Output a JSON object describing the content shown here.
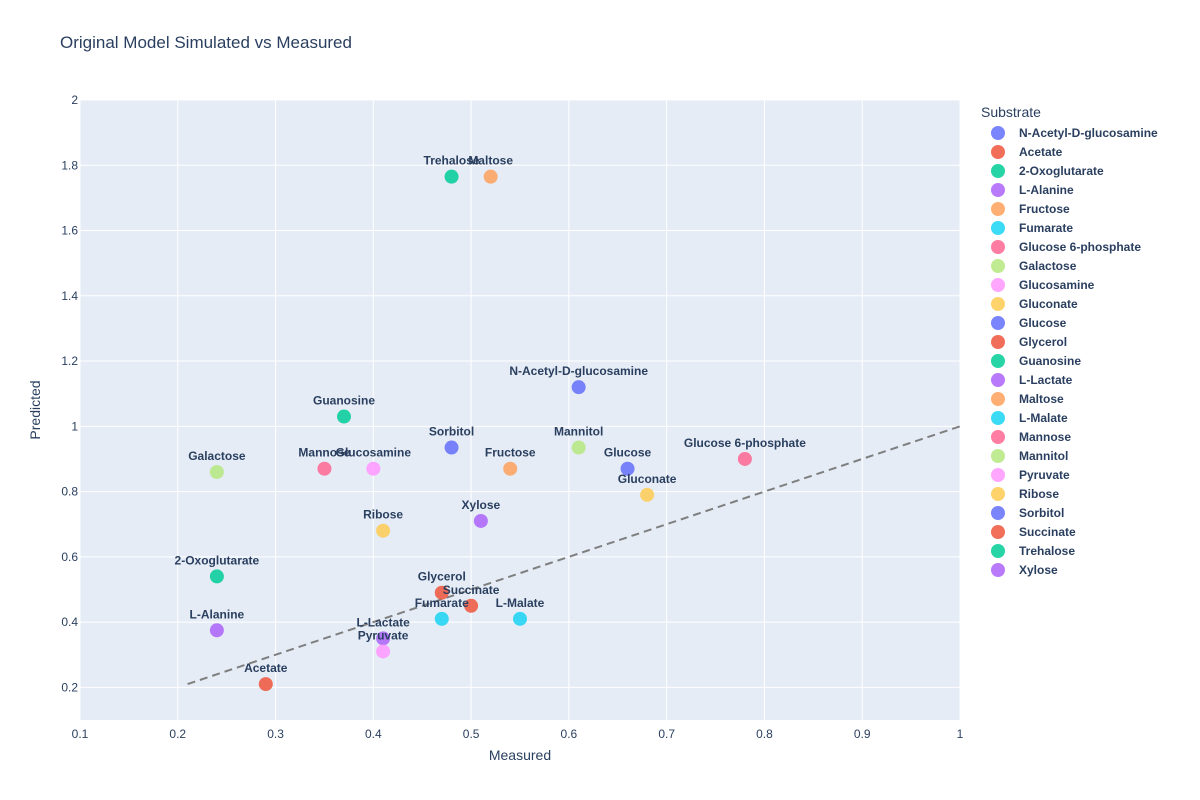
{
  "chart_data": {
    "type": "scatter",
    "title": "Original Model Simulated vs Measured",
    "xlabel": "Measured",
    "ylabel": "Predicted",
    "xlim": [
      0.1,
      1.0
    ],
    "ylim": [
      0.1,
      2.0
    ],
    "x_ticks": [
      0.1,
      0.2,
      0.3,
      0.4,
      0.5,
      0.6,
      0.7,
      0.8,
      0.9,
      1.0
    ],
    "x_tick_labels": [
      "0.1",
      "0.2",
      "0.3",
      "0.4",
      "0.5",
      "0.6",
      "0.7",
      "0.8",
      "0.9",
      "1"
    ],
    "y_ticks": [
      0.2,
      0.4,
      0.6,
      0.8,
      1.0,
      1.2,
      1.4,
      1.6,
      1.8,
      2.0
    ],
    "y_tick_labels": [
      "0.2",
      "0.4",
      "0.6",
      "0.8",
      "1",
      "1.2",
      "1.4",
      "1.6",
      "1.8",
      "2"
    ],
    "grid": true,
    "legend_title": "Substrate",
    "legend_position": "right",
    "reference_line": {
      "x": [
        0.21,
        1.0
      ],
      "y": [
        0.21,
        1.0
      ],
      "style": "dashed",
      "color": "#7f7f7f"
    },
    "series": [
      {
        "name": "N-Acetyl-D-glucosamine",
        "color": "#636efa",
        "x": 0.61,
        "y": 1.12
      },
      {
        "name": "Acetate",
        "color": "#EF553B",
        "x": 0.29,
        "y": 0.21
      },
      {
        "name": "2-Oxoglutarate",
        "color": "#00cc96",
        "x": 0.24,
        "y": 0.54
      },
      {
        "name": "L-Alanine",
        "color": "#ab63fa",
        "x": 0.24,
        "y": 0.375
      },
      {
        "name": "Fructose",
        "color": "#FFA15A",
        "x": 0.54,
        "y": 0.87
      },
      {
        "name": "Fumarate",
        "color": "#19d3f3",
        "x": 0.47,
        "y": 0.41
      },
      {
        "name": "Glucose 6-phosphate",
        "color": "#FF6692",
        "x": 0.78,
        "y": 0.9
      },
      {
        "name": "Galactose",
        "color": "#B6E880",
        "x": 0.24,
        "y": 0.86
      },
      {
        "name": "Glucosamine",
        "color": "#FF97FF",
        "x": 0.4,
        "y": 0.87
      },
      {
        "name": "Gluconate",
        "color": "#FECB52",
        "x": 0.68,
        "y": 0.79
      },
      {
        "name": "Glucose",
        "color": "#636efa",
        "x": 0.66,
        "y": 0.87
      },
      {
        "name": "Glycerol",
        "color": "#EF553B",
        "x": 0.47,
        "y": 0.49
      },
      {
        "name": "Guanosine",
        "color": "#00cc96",
        "x": 0.37,
        "y": 1.03
      },
      {
        "name": "L-Lactate",
        "color": "#ab63fa",
        "x": 0.41,
        "y": 0.35
      },
      {
        "name": "Maltose",
        "color": "#FFA15A",
        "x": 0.52,
        "y": 1.765
      },
      {
        "name": "L-Malate",
        "color": "#19d3f3",
        "x": 0.55,
        "y": 0.41
      },
      {
        "name": "Mannose",
        "color": "#FF6692",
        "x": 0.35,
        "y": 0.87
      },
      {
        "name": "Mannitol",
        "color": "#B6E880",
        "x": 0.61,
        "y": 0.935
      },
      {
        "name": "Pyruvate",
        "color": "#FF97FF",
        "x": 0.41,
        "y": 0.31
      },
      {
        "name": "Ribose",
        "color": "#FECB52",
        "x": 0.41,
        "y": 0.68
      },
      {
        "name": "Sorbitol",
        "color": "#636efa",
        "x": 0.48,
        "y": 0.935
      },
      {
        "name": "Succinate",
        "color": "#EF553B",
        "x": 0.5,
        "y": 0.45
      },
      {
        "name": "Trehalose",
        "color": "#00cc96",
        "x": 0.48,
        "y": 1.765
      },
      {
        "name": "Xylose",
        "color": "#ab63fa",
        "x": 0.51,
        "y": 0.71
      }
    ]
  }
}
